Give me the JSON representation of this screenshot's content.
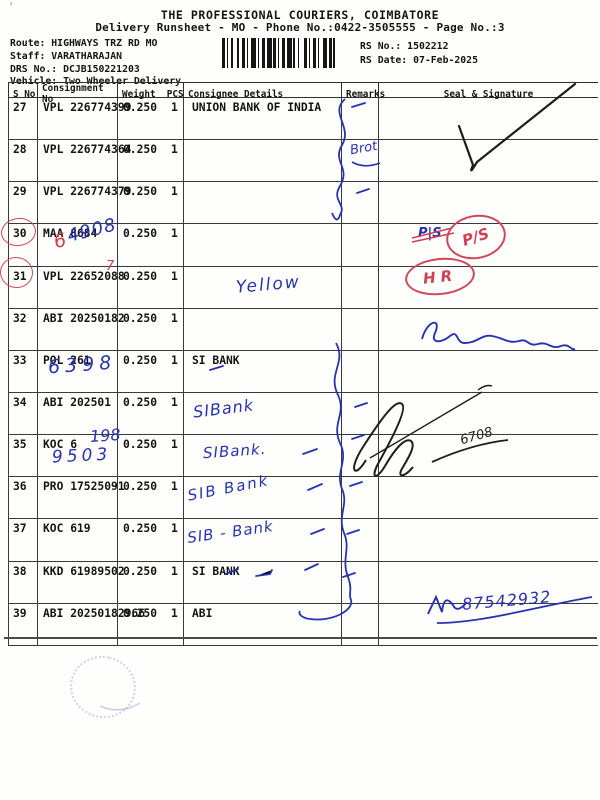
{
  "header": {
    "title": "THE PROFESSIONAL COURIERS, COIMBATORE",
    "subtitle": "Delivery Runsheet - MO - Phone No.:0422-3505555 - Page No.:3",
    "route_line": "Route: HIGHWAYS TRZ RD MO",
    "staff_line": "Staff: VARATHARAJAN",
    "drs_line": "DRS No.: DCJB150221203",
    "vehicle_line": "Vehicle: Two Wheeler Delivery",
    "rs_no_line": "RS No.: 1502212",
    "rs_date_line": "RS Date: 07-Feb-2025"
  },
  "table": {
    "columns": [
      "S No",
      "Consignment No",
      "Weight",
      "PCS",
      "Consignee Details",
      "Remarks",
      "Seal & Signature"
    ],
    "rows": [
      {
        "sno": "27",
        "consignment": "VPL 226774399",
        "weight": "0.250",
        "pcs": "1",
        "consignee": "UNION BANK OF INDIA"
      },
      {
        "sno": "28",
        "consignment": "VPL 226774364",
        "weight": "0.250",
        "pcs": "1",
        "consignee": ""
      },
      {
        "sno": "29",
        "consignment": "VPL 226774379",
        "weight": "0.250",
        "pcs": "1",
        "consignee": ""
      },
      {
        "sno": "30",
        "consignment": "MAA 8684",
        "weight": "0.250",
        "pcs": "1",
        "consignee": ""
      },
      {
        "sno": "31",
        "consignment": "VPL 22652088",
        "weight": "0.250",
        "pcs": "1",
        "consignee": ""
      },
      {
        "sno": "32",
        "consignment": "ABI 20250182",
        "weight": "0.250",
        "pcs": "1",
        "consignee": ""
      },
      {
        "sno": "33",
        "consignment": "POL 261",
        "weight": "0.250",
        "pcs": "1",
        "consignee": "SI BANK"
      },
      {
        "sno": "34",
        "consignment": "ABI 202501",
        "weight": "0.250",
        "pcs": "1",
        "consignee": ""
      },
      {
        "sno": "35",
        "consignment": "KOC 6",
        "weight": "0.250",
        "pcs": "1",
        "consignee": ""
      },
      {
        "sno": "36",
        "consignment": "PRO 17525091",
        "weight": "0.250",
        "pcs": "1",
        "consignee": ""
      },
      {
        "sno": "37",
        "consignment": "KOC 619",
        "weight": "0.250",
        "pcs": "1",
        "consignee": ""
      },
      {
        "sno": "38",
        "consignment": "KKD 61989502",
        "weight": "0.250",
        "pcs": "1",
        "consignee": "SI BANK"
      },
      {
        "sno": "39",
        "consignment": "ABI 20250182966",
        "weight": "0.250",
        "pcs": "1",
        "consignee": "ABI"
      }
    ]
  },
  "handwriting": {
    "remark_28": "Brot",
    "code_30_red": "6",
    "code_30_blue": "4908",
    "digit_31": "7",
    "ps_plain": "P|S",
    "ps_circled": "P/S",
    "hr": "HR",
    "yellow": "Yellow",
    "code_33": "6398",
    "code_35a": "198",
    "code_35b": "9503",
    "consignee_34": "SIBank",
    "consignee_35": "SIBank.",
    "consignee_36": "SIB Bank",
    "consignee_37": "SIB - Bank",
    "sig_black_code": "6708",
    "sig_39_number": "87542932"
  },
  "colors": {
    "ink_blue": "#2733ae",
    "ink_red": "#cf4050",
    "ink_black": "#222222",
    "print_black": "#141414",
    "stamp_purple": "#8c78c3"
  }
}
